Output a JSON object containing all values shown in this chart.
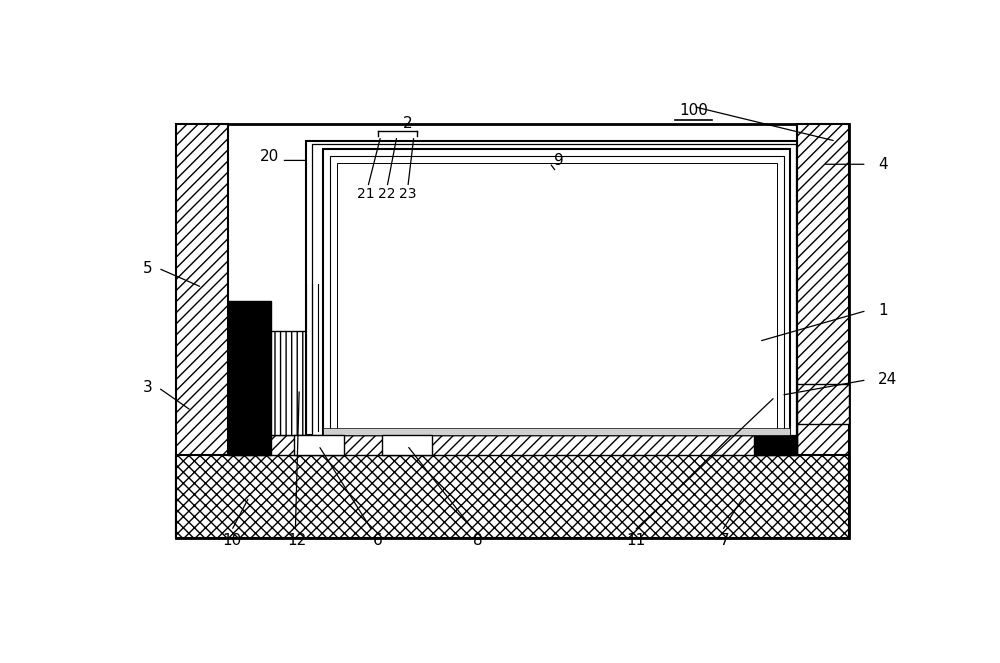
{
  "fig_width": 10.0,
  "fig_height": 6.63,
  "dpi": 100,
  "bg_color": "#ffffff",
  "fs": 11,
  "fs_sm": 10,
  "lw_thick": 2.0,
  "lw_med": 1.5,
  "lw_thin": 1.0
}
